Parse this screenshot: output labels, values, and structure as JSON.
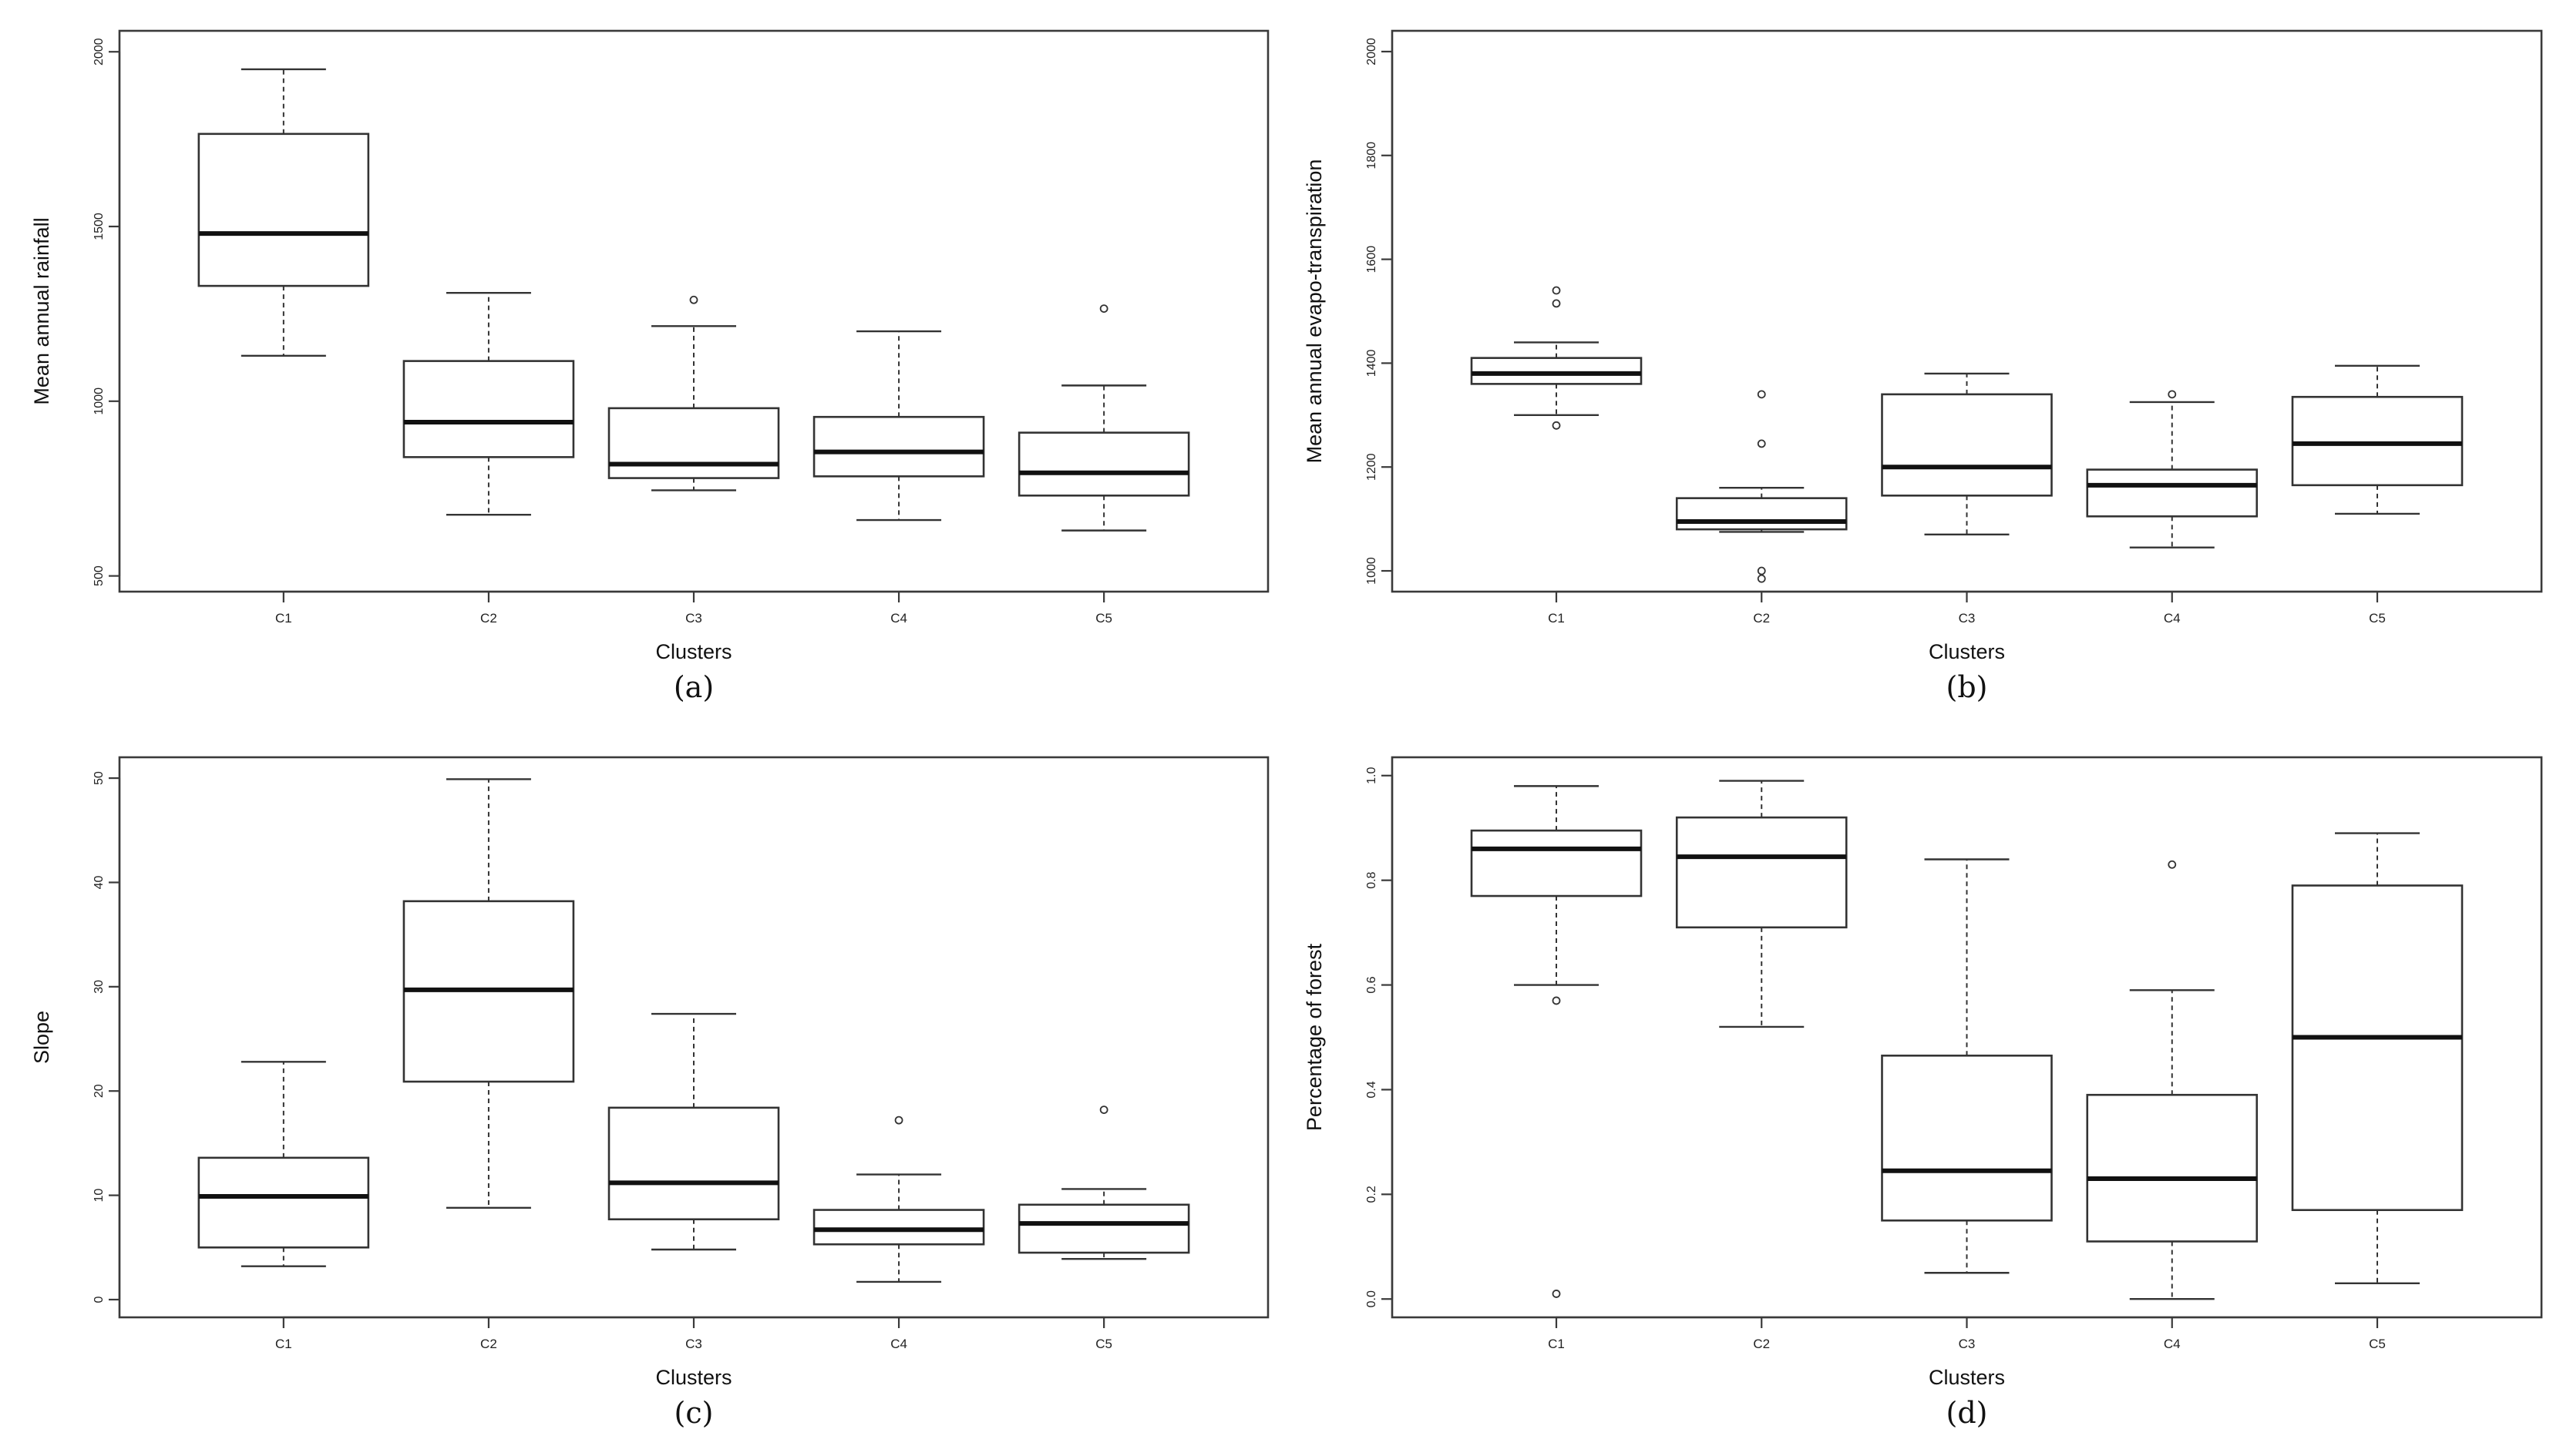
{
  "chart_data": [
    {
      "id": "a",
      "type": "boxplot",
      "panel_label": "(a)",
      "xlabel": "Clusters",
      "ylabel": "Mean annual rainfall",
      "categories": [
        "C1",
        "C2",
        "C3",
        "C4",
        "C5"
      ],
      "ylim": [
        455,
        2060
      ],
      "yticks": [
        500,
        1000,
        1500,
        2000
      ],
      "ytick_labels": [
        "500",
        "1000",
        "1500",
        "2000"
      ],
      "boxes": [
        {
          "whislo": 1130,
          "q1": 1330,
          "med": 1480,
          "q3": 1765,
          "whishi": 1950,
          "outliers": []
        },
        {
          "whislo": 675,
          "q1": 840,
          "med": 940,
          "q3": 1115,
          "whishi": 1310,
          "outliers": []
        },
        {
          "whislo": 745,
          "q1": 780,
          "med": 820,
          "q3": 980,
          "whishi": 1215,
          "outliers": [
            1290
          ]
        },
        {
          "whislo": 660,
          "q1": 785,
          "med": 855,
          "q3": 955,
          "whishi": 1200,
          "outliers": []
        },
        {
          "whislo": 630,
          "q1": 730,
          "med": 795,
          "q3": 910,
          "whishi": 1045,
          "outliers": [
            1265
          ]
        }
      ]
    },
    {
      "id": "b",
      "type": "boxplot",
      "panel_label": "(b)",
      "xlabel": "Clusters",
      "ylabel": "Mean annual evapo-transpiration",
      "categories": [
        "C1",
        "C2",
        "C3",
        "C4",
        "C5"
      ],
      "ylim": [
        960,
        2040
      ],
      "yticks": [
        1000,
        1200,
        1400,
        1600,
        1800,
        2000
      ],
      "ytick_labels": [
        "1000",
        "1200",
        "1400",
        "1600",
        "1800",
        "2000"
      ],
      "boxes": [
        {
          "whislo": 1300,
          "q1": 1360,
          "med": 1380,
          "q3": 1410,
          "whishi": 1440,
          "outliers": [
            1280,
            1515,
            1540
          ]
        },
        {
          "whislo": 1075,
          "q1": 1080,
          "med": 1095,
          "q3": 1140,
          "whishi": 1160,
          "outliers": [
            985,
            1000,
            1245,
            1340
          ]
        },
        {
          "whislo": 1070,
          "q1": 1145,
          "med": 1200,
          "q3": 1340,
          "whishi": 1380,
          "outliers": []
        },
        {
          "whislo": 1045,
          "q1": 1105,
          "med": 1165,
          "q3": 1195,
          "whishi": 1325,
          "outliers": [
            1340
          ]
        },
        {
          "whislo": 1110,
          "q1": 1165,
          "med": 1245,
          "q3": 1335,
          "whishi": 1395,
          "outliers": []
        }
      ]
    },
    {
      "id": "c",
      "type": "boxplot",
      "panel_label": "(c)",
      "xlabel": "Clusters",
      "ylabel": "Slope",
      "categories": [
        "C1",
        "C2",
        "C3",
        "C4",
        "C5"
      ],
      "ylim": [
        -1.7,
        52
      ],
      "yticks": [
        0,
        10,
        20,
        30,
        40,
        50
      ],
      "ytick_labels": [
        "0",
        "10",
        "20",
        "30",
        "40",
        "50"
      ],
      "boxes": [
        {
          "whislo": 3.2,
          "q1": 5.0,
          "med": 9.9,
          "q3": 13.6,
          "whishi": 22.8,
          "outliers": []
        },
        {
          "whislo": 8.8,
          "q1": 20.9,
          "med": 29.7,
          "q3": 38.2,
          "whishi": 49.9,
          "outliers": []
        },
        {
          "whislo": 4.8,
          "q1": 7.7,
          "med": 11.2,
          "q3": 18.4,
          "whishi": 27.4,
          "outliers": []
        },
        {
          "whislo": 1.7,
          "q1": 5.3,
          "med": 6.7,
          "q3": 8.6,
          "whishi": 12.0,
          "outliers": [
            17.2
          ]
        },
        {
          "whislo": 3.9,
          "q1": 4.5,
          "med": 7.3,
          "q3": 9.1,
          "whishi": 10.6,
          "outliers": [
            18.2
          ]
        }
      ]
    },
    {
      "id": "d",
      "type": "boxplot",
      "panel_label": "(d)",
      "xlabel": "Clusters",
      "ylabel": "Percentage of forest",
      "categories": [
        "C1",
        "C2",
        "C3",
        "C4",
        "C5"
      ],
      "ylim": [
        -0.035,
        1.035
      ],
      "yticks": [
        0.0,
        0.2,
        0.4,
        0.6,
        0.8,
        1.0
      ],
      "ytick_labels": [
        "0.0",
        "0.2",
        "0.4",
        "0.6",
        "0.8",
        "1.0"
      ],
      "boxes": [
        {
          "whislo": 0.6,
          "q1": 0.77,
          "med": 0.86,
          "q3": 0.895,
          "whishi": 0.98,
          "outliers": [
            0.01,
            0.57
          ]
        },
        {
          "whislo": 0.52,
          "q1": 0.71,
          "med": 0.845,
          "q3": 0.92,
          "whishi": 0.99,
          "outliers": []
        },
        {
          "whislo": 0.05,
          "q1": 0.15,
          "med": 0.245,
          "q3": 0.465,
          "whishi": 0.84,
          "outliers": []
        },
        {
          "whislo": 0.0,
          "q1": 0.11,
          "med": 0.23,
          "q3": 0.39,
          "whishi": 0.59,
          "outliers": [
            0.83
          ]
        },
        {
          "whislo": 0.03,
          "q1": 0.17,
          "med": 0.5,
          "q3": 0.79,
          "whishi": 0.89,
          "outliers": []
        }
      ]
    }
  ]
}
